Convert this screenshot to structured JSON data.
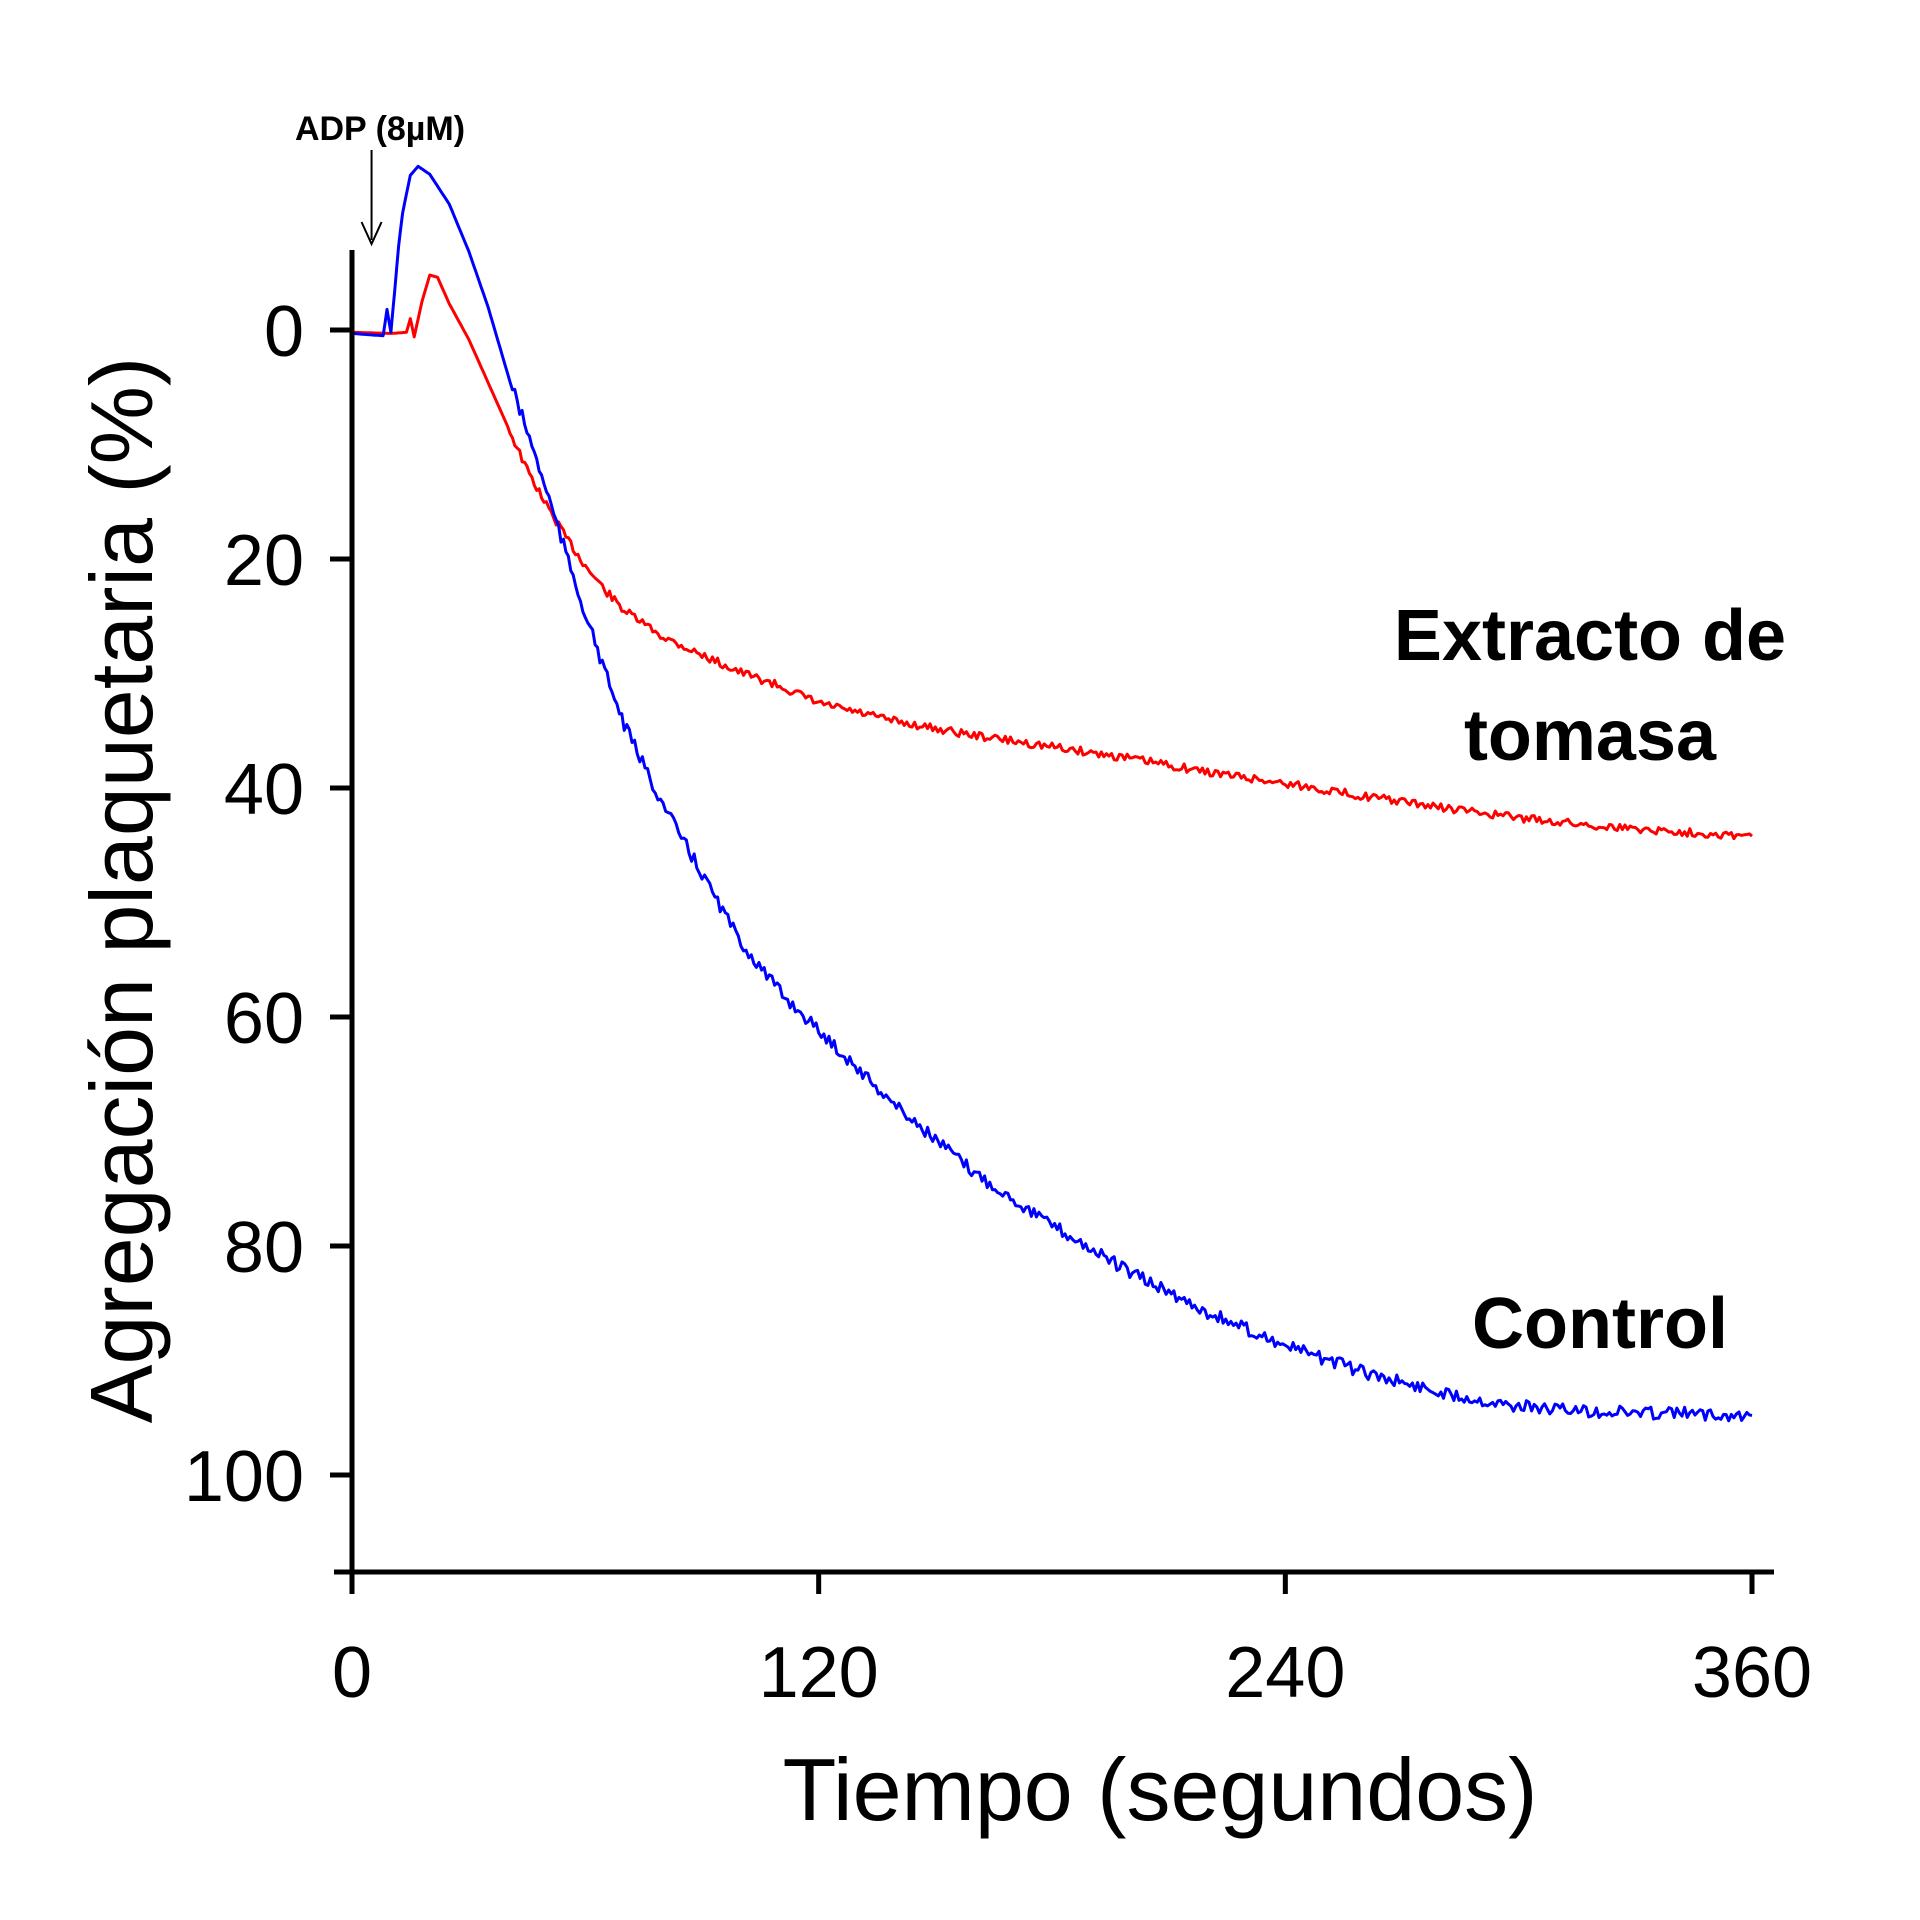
{
  "chart_data": {
    "type": "line",
    "title": "",
    "xlabel": "Tiempo (segundos)",
    "ylabel": "Agregación plaquetaria  (%)",
    "xlim": [
      0,
      360
    ],
    "ylim": [
      -7,
      108
    ],
    "y_inverted": true,
    "grid": false,
    "legend": "none",
    "xticks": [
      0,
      120,
      240,
      360
    ],
    "yticks": [
      0,
      20,
      40,
      60,
      80,
      100
    ],
    "annotations": [
      {
        "text": "ADP (8µM)",
        "x": 4,
        "type": "arrow-down"
      }
    ],
    "series": [
      {
        "name": "Extracto de tomasa",
        "color": "#ff0000",
        "x": [
          0,
          10,
          14,
          15,
          16,
          18,
          20,
          22,
          25,
          30,
          35,
          40,
          45,
          50,
          55,
          60,
          65,
          70,
          80,
          90,
          100,
          110,
          120,
          140,
          160,
          180,
          200,
          220,
          240,
          260,
          280,
          300,
          320,
          340,
          360
        ],
        "y": [
          0.2,
          0.3,
          0.2,
          -1.0,
          0.6,
          -2.5,
          -4.8,
          -4.6,
          -2.3,
          0.8,
          4.6,
          8.4,
          12.2,
          15.3,
          18.1,
          20.6,
          22.7,
          24.5,
          26.8,
          28.4,
          29.9,
          31.1,
          32.6,
          34.2,
          35.4,
          36.4,
          37.4,
          38.6,
          39.6,
          40.7,
          41.7,
          42.6,
          43.3,
          43.8,
          44.2
        ]
      },
      {
        "name": "Control",
        "color": "#0000ff",
        "x": [
          0,
          8,
          9,
          10,
          11,
          12,
          13,
          15,
          17,
          20,
          25,
          30,
          35,
          40,
          45,
          50,
          55,
          60,
          65,
          70,
          80,
          90,
          100,
          110,
          120,
          140,
          160,
          180,
          200,
          220,
          240,
          260,
          280,
          300,
          320,
          340,
          360
        ],
        "y": [
          0.3,
          0.5,
          -1.8,
          0.2,
          -3.5,
          -7.4,
          -10.2,
          -13.5,
          -14.3,
          -13.6,
          -11.0,
          -6.9,
          -2.0,
          3.8,
          8.8,
          14.0,
          19.5,
          24.8,
          29.8,
          34.5,
          41.5,
          47.5,
          53.5,
          57.8,
          61.2,
          67.8,
          73.6,
          78.2,
          82.3,
          85.8,
          88.7,
          91.0,
          92.8,
          94.0,
          94.5,
          94.6,
          94.8
        ]
      }
    ],
    "series_labels": [
      {
        "lines": [
          "Extracto de",
          "tomasa"
        ]
      },
      {
        "lines": [
          "Control"
        ]
      }
    ]
  }
}
